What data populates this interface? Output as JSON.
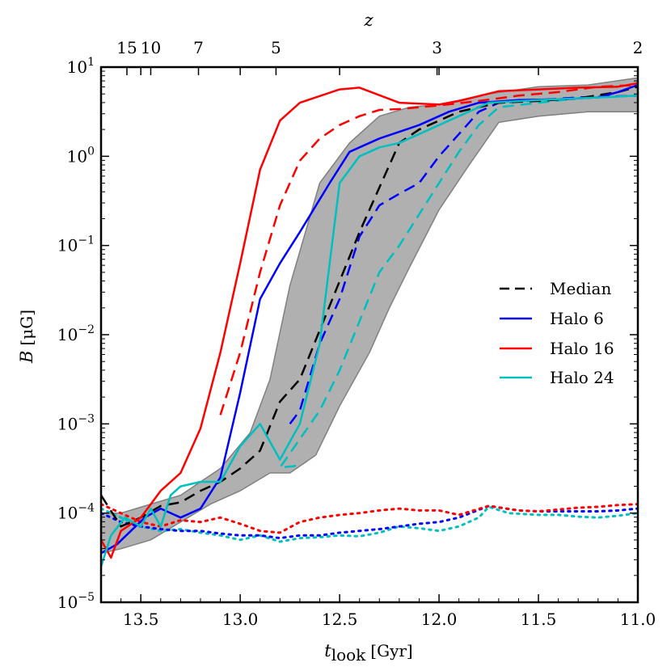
{
  "chart_data": {
    "type": "line",
    "title": "",
    "xlabel_main": "t",
    "xlabel_sub": "look",
    "xlabel_unit": "[Gyr]",
    "ylabel_main": "B",
    "ylabel_unit": "[μG]",
    "top_axis_label": "z",
    "xlim": [
      13.7,
      11.0
    ],
    "ylim_log10": [
      -5,
      1
    ],
    "x_ticks": [
      13.5,
      13.0,
      12.5,
      12.0,
      11.5,
      11.0
    ],
    "x_tick_labels": [
      "13.5",
      "13.0",
      "12.5",
      "12.0",
      "11.5",
      "11.0"
    ],
    "y_ticks_log10": [
      -5,
      -4,
      -3,
      -2,
      -1,
      0,
      1
    ],
    "y_tick_labels_exp": [
      "−5",
      "−4",
      "−3",
      "−2",
      "−1",
      "0",
      "1"
    ],
    "y_tick_base": "10",
    "top_ticks": [
      {
        "t": 13.57,
        "label": "15"
      },
      {
        "t": 13.45,
        "label": "10"
      },
      {
        "t": 13.21,
        "label": "7"
      },
      {
        "t": 12.82,
        "label": "5"
      },
      {
        "t": 12.01,
        "label": "3"
      },
      {
        "t": 11.0,
        "label": "2"
      }
    ],
    "colors": {
      "median": "#000000",
      "halo6": "#0000ff",
      "halo16": "#ff0000",
      "halo24": "#00bfbf",
      "band": "#b0b0b0",
      "band_edge": "#808080"
    },
    "legend_position": "center-right",
    "legend": [
      {
        "label": "Median",
        "series": "median"
      },
      {
        "label": "Halo 6",
        "series": "halo6"
      },
      {
        "label": "Halo 16",
        "series": "halo16"
      },
      {
        "label": "Halo 24",
        "series": "halo24"
      }
    ],
    "band": {
      "upper": [
        [
          13.7,
          -4.0
        ],
        [
          13.6,
          -4.0
        ],
        [
          13.45,
          -3.9
        ],
        [
          13.3,
          -3.8
        ],
        [
          13.1,
          -3.5
        ],
        [
          12.95,
          -3.1
        ],
        [
          12.85,
          -2.5
        ],
        [
          12.75,
          -1.45
        ],
        [
          12.6,
          -0.3
        ],
        [
          12.45,
          0.15
        ],
        [
          12.3,
          0.45
        ],
        [
          12.15,
          0.55
        ],
        [
          12.0,
          0.58
        ],
        [
          11.75,
          0.7
        ],
        [
          11.5,
          0.78
        ],
        [
          11.25,
          0.8
        ],
        [
          11.0,
          0.88
        ]
      ],
      "lower": [
        [
          13.7,
          -4.45
        ],
        [
          13.6,
          -4.4
        ],
        [
          13.45,
          -4.3
        ],
        [
          13.3,
          -4.1
        ],
        [
          13.15,
          -3.9
        ],
        [
          13.0,
          -3.75
        ],
        [
          12.85,
          -3.55
        ],
        [
          12.75,
          -3.55
        ],
        [
          12.62,
          -3.35
        ],
        [
          12.5,
          -2.8
        ],
        [
          12.35,
          -2.2
        ],
        [
          12.25,
          -1.7
        ],
        [
          12.15,
          -1.25
        ],
        [
          12.0,
          -0.6
        ],
        [
          11.85,
          -0.1
        ],
        [
          11.7,
          0.38
        ],
        [
          11.5,
          0.45
        ],
        [
          11.25,
          0.5
        ],
        [
          11.0,
          0.5
        ]
      ]
    },
    "series": [
      {
        "name": "halo24_dotted",
        "color": "halo24",
        "style": "dotted",
        "points": [
          [
            13.7,
            -3.95
          ],
          [
            13.6,
            -4.05
          ],
          [
            13.5,
            -4.15
          ],
          [
            13.4,
            -4.2
          ],
          [
            13.3,
            -4.18
          ],
          [
            13.2,
            -4.22
          ],
          [
            13.1,
            -4.25
          ],
          [
            13.0,
            -4.3
          ],
          [
            12.9,
            -4.25
          ],
          [
            12.8,
            -4.32
          ],
          [
            12.7,
            -4.28
          ],
          [
            12.6,
            -4.27
          ],
          [
            12.5,
            -4.25
          ],
          [
            12.4,
            -4.26
          ],
          [
            12.3,
            -4.22
          ],
          [
            12.2,
            -4.15
          ],
          [
            12.1,
            -4.17
          ],
          [
            12.0,
            -4.2
          ],
          [
            11.9,
            -4.15
          ],
          [
            11.8,
            -4.05
          ],
          [
            11.75,
            -3.93
          ],
          [
            11.65,
            -4.0
          ],
          [
            11.5,
            -4.02
          ],
          [
            11.4,
            -4.02
          ],
          [
            11.3,
            -4.04
          ],
          [
            11.2,
            -4.05
          ],
          [
            11.1,
            -4.03
          ],
          [
            11.0,
            -4.0
          ]
        ]
      },
      {
        "name": "halo6_dotted",
        "color": "halo6",
        "style": "dotted",
        "points": [
          [
            13.7,
            -4.0
          ],
          [
            13.6,
            -4.1
          ],
          [
            13.5,
            -4.15
          ],
          [
            13.4,
            -4.18
          ],
          [
            13.3,
            -4.2
          ],
          [
            13.2,
            -4.2
          ],
          [
            13.1,
            -4.23
          ],
          [
            13.0,
            -4.25
          ],
          [
            12.9,
            -4.25
          ],
          [
            12.8,
            -4.28
          ],
          [
            12.7,
            -4.25
          ],
          [
            12.6,
            -4.25
          ],
          [
            12.5,
            -4.22
          ],
          [
            12.4,
            -4.2
          ],
          [
            12.3,
            -4.18
          ],
          [
            12.2,
            -4.15
          ],
          [
            12.1,
            -4.12
          ],
          [
            12.0,
            -4.1
          ],
          [
            11.9,
            -4.05
          ],
          [
            11.75,
            -3.92
          ],
          [
            11.6,
            -3.97
          ],
          [
            11.5,
            -3.98
          ],
          [
            11.4,
            -3.98
          ],
          [
            11.3,
            -3.98
          ],
          [
            11.2,
            -3.98
          ],
          [
            11.1,
            -3.97
          ],
          [
            11.0,
            -3.95
          ]
        ]
      },
      {
        "name": "halo16_dotted",
        "color": "halo16",
        "style": "dotted",
        "points": [
          [
            13.7,
            -3.9
          ],
          [
            13.6,
            -4.0
          ],
          [
            13.5,
            -4.1
          ],
          [
            13.4,
            -4.15
          ],
          [
            13.3,
            -4.08
          ],
          [
            13.2,
            -4.1
          ],
          [
            13.1,
            -4.05
          ],
          [
            13.0,
            -4.12
          ],
          [
            12.9,
            -4.2
          ],
          [
            12.8,
            -4.22
          ],
          [
            12.7,
            -4.1
          ],
          [
            12.6,
            -4.05
          ],
          [
            12.5,
            -4.02
          ],
          [
            12.4,
            -4.0
          ],
          [
            12.3,
            -3.97
          ],
          [
            12.2,
            -3.95
          ],
          [
            12.1,
            -3.97
          ],
          [
            12.0,
            -3.97
          ],
          [
            11.9,
            -4.02
          ],
          [
            11.75,
            -3.92
          ],
          [
            11.6,
            -3.97
          ],
          [
            11.5,
            -3.98
          ],
          [
            11.4,
            -3.96
          ],
          [
            11.3,
            -3.94
          ],
          [
            11.2,
            -3.93
          ],
          [
            11.1,
            -3.91
          ],
          [
            11.0,
            -3.9
          ]
        ]
      },
      {
        "name": "halo24_dashed",
        "color": "halo24",
        "style": "dashed",
        "points": [
          [
            12.72,
            -3.47
          ],
          [
            12.8,
            -3.49
          ],
          [
            12.6,
            -2.85
          ],
          [
            12.5,
            -2.4
          ],
          [
            12.4,
            -1.85
          ],
          [
            12.3,
            -1.3
          ],
          [
            12.2,
            -1.0
          ],
          [
            12.1,
            -0.65
          ],
          [
            12.0,
            -0.3
          ],
          [
            11.9,
            0.05
          ],
          [
            11.8,
            0.35
          ],
          [
            11.7,
            0.55
          ],
          [
            11.5,
            0.6
          ],
          [
            11.3,
            0.65
          ],
          [
            11.0,
            0.68
          ]
        ]
      },
      {
        "name": "halo6_dashed",
        "color": "halo6",
        "style": "dashed",
        "points": [
          [
            12.75,
            -3.0
          ],
          [
            12.7,
            -2.85
          ],
          [
            12.6,
            -2.1
          ],
          [
            12.5,
            -1.6
          ],
          [
            12.4,
            -0.9
          ],
          [
            12.3,
            -0.55
          ],
          [
            12.2,
            -0.42
          ],
          [
            12.1,
            -0.3
          ],
          [
            12.0,
            0.0
          ],
          [
            11.9,
            0.25
          ],
          [
            11.8,
            0.5
          ],
          [
            11.7,
            0.6
          ],
          [
            11.5,
            0.63
          ],
          [
            11.3,
            0.66
          ],
          [
            11.0,
            0.68
          ]
        ]
      },
      {
        "name": "halo16_dashed",
        "color": "halo16",
        "style": "dashed",
        "points": [
          [
            13.1,
            -2.9
          ],
          [
            13.0,
            -2.2
          ],
          [
            12.9,
            -1.3
          ],
          [
            12.8,
            -0.55
          ],
          [
            12.7,
            -0.05
          ],
          [
            12.6,
            0.2
          ],
          [
            12.5,
            0.35
          ],
          [
            12.4,
            0.45
          ],
          [
            12.3,
            0.52
          ],
          [
            12.2,
            0.53
          ],
          [
            12.1,
            0.55
          ],
          [
            12.0,
            0.57
          ],
          [
            11.8,
            0.62
          ],
          [
            11.6,
            0.68
          ],
          [
            11.4,
            0.72
          ],
          [
            11.2,
            0.78
          ],
          [
            11.0,
            0.8
          ]
        ]
      },
      {
        "name": "median",
        "color": "median",
        "style": "dashed",
        "points": [
          [
            13.7,
            -3.8
          ],
          [
            13.6,
            -4.15
          ],
          [
            13.5,
            -4.05
          ],
          [
            13.4,
            -3.92
          ],
          [
            13.3,
            -3.88
          ],
          [
            13.2,
            -3.75
          ],
          [
            13.1,
            -3.65
          ],
          [
            13.0,
            -3.5
          ],
          [
            12.9,
            -3.3
          ],
          [
            12.8,
            -2.75
          ],
          [
            12.7,
            -2.5
          ],
          [
            12.6,
            -1.95
          ],
          [
            12.5,
            -1.4
          ],
          [
            12.4,
            -0.85
          ],
          [
            12.3,
            -0.35
          ],
          [
            12.2,
            0.15
          ],
          [
            12.1,
            0.3
          ],
          [
            12.0,
            0.4
          ],
          [
            11.9,
            0.5
          ],
          [
            11.8,
            0.55
          ],
          [
            11.7,
            0.6
          ],
          [
            11.5,
            0.62
          ],
          [
            11.3,
            0.65
          ],
          [
            11.1,
            0.72
          ],
          [
            11.0,
            0.78
          ]
        ]
      },
      {
        "name": "halo6",
        "color": "halo6",
        "style": "solid",
        "points": [
          [
            13.7,
            -4.45
          ],
          [
            13.62,
            -4.35
          ],
          [
            13.55,
            -4.2
          ],
          [
            13.48,
            -4.05
          ],
          [
            13.4,
            -3.95
          ],
          [
            13.3,
            -4.05
          ],
          [
            13.2,
            -3.95
          ],
          [
            13.1,
            -3.6
          ],
          [
            13.0,
            -2.65
          ],
          [
            12.9,
            -1.6
          ],
          [
            12.8,
            -1.2
          ],
          [
            12.7,
            -0.85
          ],
          [
            12.55,
            -0.3
          ],
          [
            12.45,
            0.05
          ],
          [
            12.3,
            0.2
          ],
          [
            12.1,
            0.35
          ],
          [
            11.95,
            0.5
          ],
          [
            11.8,
            0.6
          ],
          [
            11.6,
            0.63
          ],
          [
            11.4,
            0.64
          ],
          [
            11.2,
            0.66
          ],
          [
            11.1,
            0.72
          ],
          [
            11.0,
            0.8
          ]
        ]
      },
      {
        "name": "halo16",
        "color": "halo16",
        "style": "solid",
        "points": [
          [
            13.7,
            -4.3
          ],
          [
            13.65,
            -4.5
          ],
          [
            13.6,
            -4.2
          ],
          [
            13.5,
            -4.05
          ],
          [
            13.4,
            -3.75
          ],
          [
            13.3,
            -3.55
          ],
          [
            13.2,
            -3.05
          ],
          [
            13.1,
            -2.2
          ],
          [
            13.0,
            -1.2
          ],
          [
            12.9,
            -0.15
          ],
          [
            12.8,
            0.4
          ],
          [
            12.7,
            0.6
          ],
          [
            12.5,
            0.75
          ],
          [
            12.4,
            0.77
          ],
          [
            12.2,
            0.6
          ],
          [
            12.0,
            0.58
          ],
          [
            11.9,
            0.62
          ],
          [
            11.7,
            0.73
          ],
          [
            11.5,
            0.75
          ],
          [
            11.3,
            0.77
          ],
          [
            11.1,
            0.78
          ],
          [
            11.0,
            0.82
          ]
        ]
      },
      {
        "name": "halo24",
        "color": "halo24",
        "style": "solid",
        "points": [
          [
            13.7,
            -4.6
          ],
          [
            13.65,
            -4.25
          ],
          [
            13.58,
            -4.05
          ],
          [
            13.5,
            -4.15
          ],
          [
            13.45,
            -3.95
          ],
          [
            13.4,
            -4.15
          ],
          [
            13.35,
            -3.8
          ],
          [
            13.3,
            -3.7
          ],
          [
            13.2,
            -3.65
          ],
          [
            13.1,
            -3.65
          ],
          [
            13.0,
            -3.25
          ],
          [
            12.9,
            -3.0
          ],
          [
            12.8,
            -3.4
          ],
          [
            12.7,
            -3.0
          ],
          [
            12.6,
            -2.1
          ],
          [
            12.5,
            -0.3
          ],
          [
            12.4,
            0.0
          ],
          [
            12.3,
            0.1
          ],
          [
            12.2,
            0.15
          ],
          [
            12.1,
            0.25
          ],
          [
            11.9,
            0.45
          ],
          [
            11.75,
            0.6
          ],
          [
            11.5,
            0.63
          ],
          [
            11.3,
            0.65
          ],
          [
            11.1,
            0.67
          ],
          [
            11.0,
            0.68
          ]
        ]
      }
    ]
  }
}
